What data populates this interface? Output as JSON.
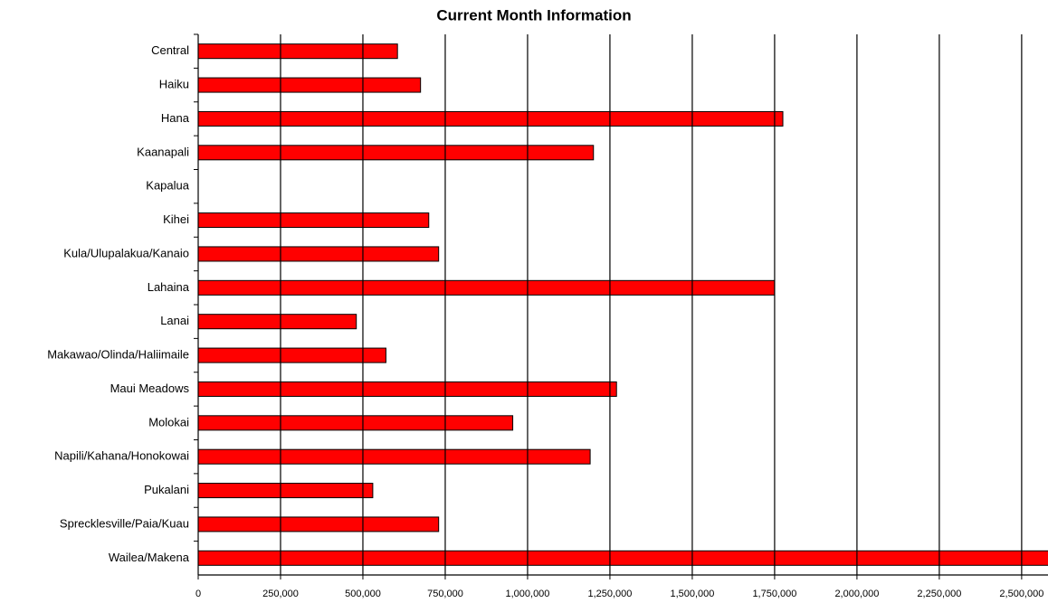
{
  "chart_data": {
    "type": "hbar",
    "title": "Current Month Information",
    "categories": [
      "Central",
      "Haiku",
      "Hana",
      "Kaanapali",
      "Kapalua",
      "Kihei",
      "Kula/Ulupalakua/Kanaio",
      "Lahaina",
      "Lanai",
      "Makawao/Olinda/Haliimaile",
      "Maui Meadows",
      "Molokai",
      "Napili/Kahana/Honokowai",
      "Pukalani",
      "Sprecklesville/Paia/Kuau",
      "Wailea/Makena"
    ],
    "values": [
      605000,
      675000,
      1775000,
      1200000,
      null,
      700000,
      730000,
      1750000,
      480000,
      570000,
      1270000,
      955000,
      1190000,
      530000,
      730000,
      2600000
    ],
    "color": "#ff0000",
    "xlim": [
      0,
      2580000
    ],
    "xticks": [
      0,
      {
        "value": 250000,
        "label": "250,000"
      },
      {
        "value": 500000,
        "label": "500,000"
      },
      {
        "value": 750000,
        "label": "750,000"
      },
      {
        "value": 1000000,
        "label": "1,000,000"
      },
      {
        "value": 1250000,
        "label": "1,250,000"
      },
      {
        "value": 1500000,
        "label": "1,500,000"
      },
      {
        "value": 1750000,
        "label": "1,750,000"
      },
      {
        "value": 2000000,
        "label": "2,000,000"
      },
      {
        "value": 2250000,
        "label": "2,250,000"
      },
      {
        "value": 2500000,
        "label": "2,500,000"
      }
    ],
    "grid": true
  }
}
